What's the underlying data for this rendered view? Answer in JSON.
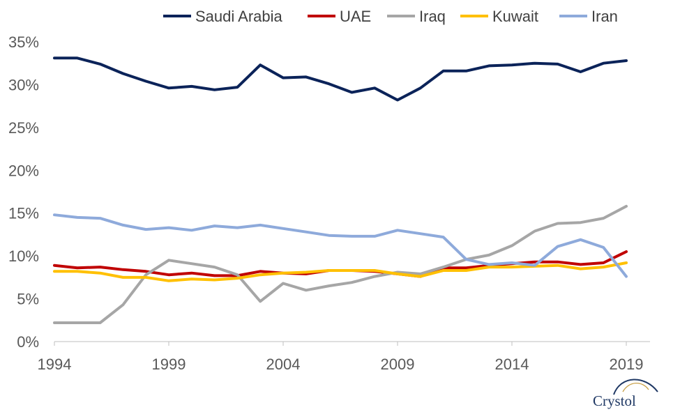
{
  "chart_data": {
    "type": "line",
    "title": "",
    "xlabel": "",
    "ylabel": "",
    "x": [
      1994,
      1995,
      1996,
      1997,
      1998,
      1999,
      2000,
      2001,
      2002,
      2003,
      2004,
      2005,
      2006,
      2007,
      2008,
      2009,
      2010,
      2011,
      2012,
      2013,
      2014,
      2015,
      2016,
      2017,
      2018,
      2019
    ],
    "xticks": [
      "1994",
      "1999",
      "2004",
      "2009",
      "2014",
      "2019"
    ],
    "yticks": [
      "0%",
      "5%",
      "10%",
      "15%",
      "20%",
      "25%",
      "30%",
      "35%"
    ],
    "ylim": [
      0,
      35
    ],
    "y_unit": "%",
    "grid": false,
    "legend_position": "top",
    "series": [
      {
        "name": "Saudi Arabia",
        "color": "#0b2359",
        "values": [
          33.1,
          33.1,
          32.4,
          31.3,
          30.4,
          29.6,
          29.8,
          29.4,
          29.7,
          32.3,
          30.8,
          30.9,
          30.1,
          29.1,
          29.6,
          28.2,
          29.6,
          31.6,
          31.6,
          32.2,
          32.3,
          32.5,
          32.4,
          31.5,
          32.5,
          32.8
        ]
      },
      {
        "name": "UAE",
        "color": "#c00000",
        "values": [
          8.9,
          8.6,
          8.7,
          8.4,
          8.2,
          7.8,
          8.0,
          7.7,
          7.7,
          8.2,
          8.0,
          7.9,
          8.3,
          8.3,
          8.2,
          7.9,
          7.6,
          8.6,
          8.6,
          8.9,
          9.1,
          9.3,
          9.3,
          9.0,
          9.2,
          10.5
        ]
      },
      {
        "name": "Iraq",
        "color": "#a6a6a6",
        "values": [
          2.2,
          2.2,
          2.2,
          4.3,
          7.8,
          9.5,
          9.1,
          8.7,
          7.8,
          4.7,
          6.8,
          6.0,
          6.5,
          6.9,
          7.6,
          8.1,
          7.9,
          8.7,
          9.6,
          10.1,
          11.2,
          12.9,
          13.8,
          13.9,
          14.4,
          15.8
        ]
      },
      {
        "name": "Kuwait",
        "color": "#ffc000",
        "values": [
          8.2,
          8.2,
          8.0,
          7.5,
          7.5,
          7.1,
          7.3,
          7.2,
          7.4,
          7.8,
          8.0,
          8.1,
          8.3,
          8.3,
          8.3,
          7.9,
          7.6,
          8.3,
          8.3,
          8.7,
          8.7,
          8.8,
          8.9,
          8.5,
          8.7,
          9.2
        ]
      },
      {
        "name": "Iran",
        "color": "#8eaadb",
        "values": [
          14.8,
          14.5,
          14.4,
          13.6,
          13.1,
          13.3,
          13.0,
          13.5,
          13.3,
          13.6,
          13.2,
          12.8,
          12.4,
          12.3,
          12.3,
          13.0,
          12.6,
          12.2,
          9.6,
          9.0,
          9.2,
          8.9,
          11.1,
          11.9,
          11.0,
          7.6
        ]
      }
    ]
  },
  "logo": {
    "text": "Crystol"
  }
}
